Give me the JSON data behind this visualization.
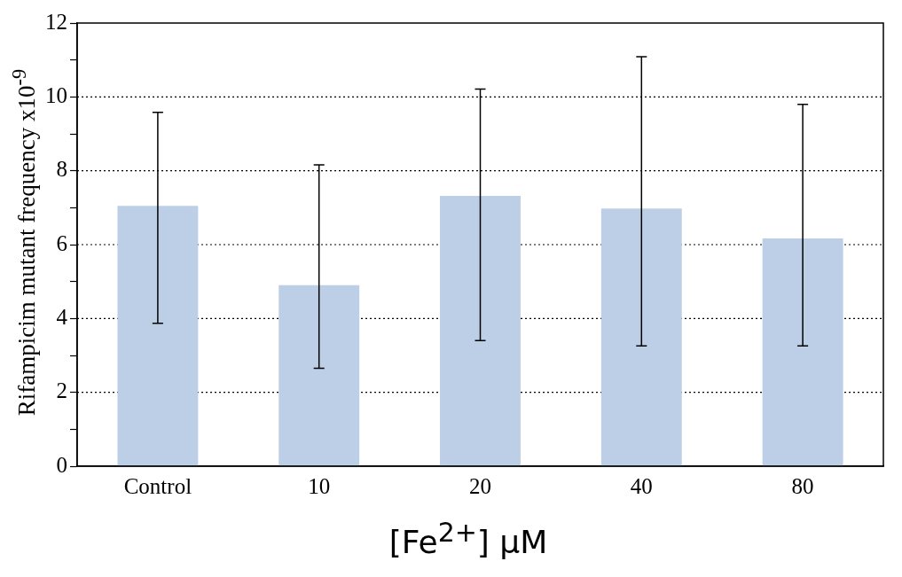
{
  "chart_data": {
    "type": "bar",
    "xlabel": "[Fe$^{2+}$] μM",
    "ylabel": "Rifampicim mutant frequency x10$^{-9}$",
    "categories": [
      "Control",
      "10",
      "20",
      "40",
      "80"
    ],
    "values": [
      7.05,
      4.9,
      7.32,
      6.98,
      6.17
    ],
    "errors": [
      [
        3.87,
        9.58
      ],
      [
        2.65,
        8.16
      ],
      [
        3.4,
        10.21
      ],
      [
        3.26,
        11.09
      ],
      [
        3.26,
        9.8
      ]
    ],
    "color": "#bccfe6",
    "ylim": [
      0,
      12
    ],
    "yticks": [
      0,
      {
        "value": 1,
        "label": null
      },
      2,
      {
        "value": 3,
        "label": null
      },
      4,
      {
        "value": 5,
        "label": null
      },
      6,
      {
        "value": 7,
        "label": null
      },
      8,
      {
        "value": 9,
        "label": null
      },
      10,
      {
        "value": 11,
        "label": null
      },
      12
    ],
    "grid": "y",
    "line_style": "dotted"
  }
}
